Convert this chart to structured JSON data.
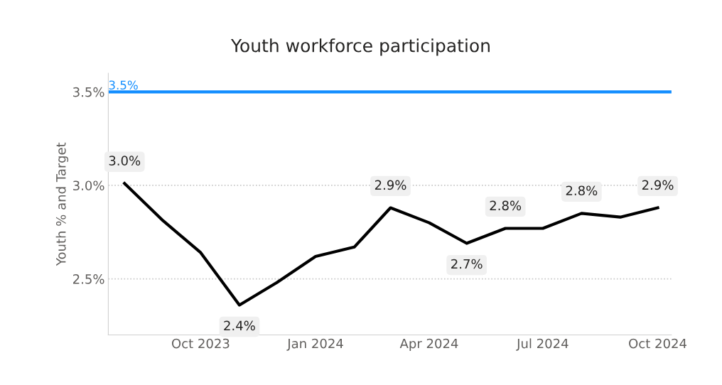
{
  "chart_data": {
    "type": "line",
    "title": "Youth workforce participation",
    "ylabel": "Youth % and Target",
    "x": [
      "2023-08",
      "2023-09",
      "2023-10",
      "2023-11",
      "2023-12",
      "2024-01",
      "2024-02",
      "2024-03",
      "2024-04",
      "2024-05",
      "2024-06",
      "2024-07",
      "2024-08",
      "2024-09",
      "2024-10"
    ],
    "series": [
      {
        "color": "#000000",
        "values": [
          3.01,
          2.81,
          2.64,
          2.36,
          2.48,
          2.62,
          2.67,
          2.88,
          2.8,
          2.69,
          2.77,
          2.77,
          2.85,
          2.83,
          2.88
        ],
        "value_labels": [
          "3.0%",
          null,
          null,
          "2.4%",
          null,
          null,
          null,
          "2.9%",
          null,
          "2.7%",
          "2.8%",
          null,
          "2.8%",
          null,
          "2.9%"
        ]
      }
    ],
    "ref_lines": [
      {
        "axis": "y",
        "value": 3.5,
        "label": "3.5%",
        "color": "#118dff",
        "line_style": "solid"
      }
    ],
    "xlim": [
      "2023-07-19",
      "2024-10-12"
    ],
    "xticks": [
      {
        "value": "2023-10",
        "label": "Oct 2023"
      },
      {
        "value": "2024-01",
        "label": "Jan 2024"
      },
      {
        "value": "2024-04",
        "label": "Apr 2024"
      },
      {
        "value": "2024-07",
        "label": "Jul 2024"
      },
      {
        "value": "2024-10",
        "label": "Oct 2024"
      }
    ],
    "ylim": [
      2.2,
      3.6
    ],
    "yticks": [
      {
        "value": 2.5,
        "label": "2.5%"
      },
      {
        "value": 3.0,
        "label": "3.0%"
      },
      {
        "value": 3.5,
        "label": "3.5%"
      }
    ],
    "grid": "y",
    "legend": false,
    "marker": "none",
    "line_style": "solid"
  }
}
